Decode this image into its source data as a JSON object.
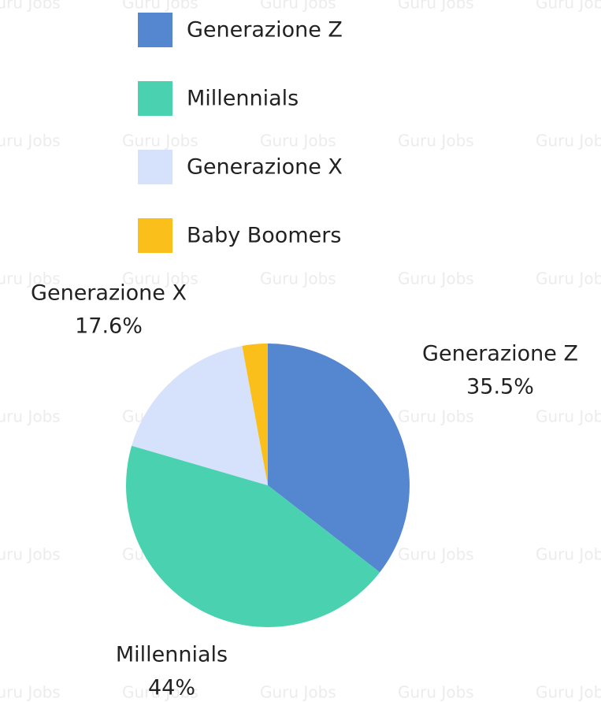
{
  "chart_data": {
    "type": "pie",
    "watermark": "Guru Jobs",
    "categories": [
      "Generazione Z",
      "Millennials",
      "Generazione X",
      "Baby Boomers"
    ],
    "values": [
      35.5,
      44,
      17.6,
      2.9
    ],
    "value_labels": [
      "35.5%",
      "44%",
      "17.6%",
      null
    ],
    "colors": [
      "#5487cf",
      "#49d1b0",
      "#d6e2fb",
      "#fbbf1b"
    ],
    "legend": "top"
  }
}
